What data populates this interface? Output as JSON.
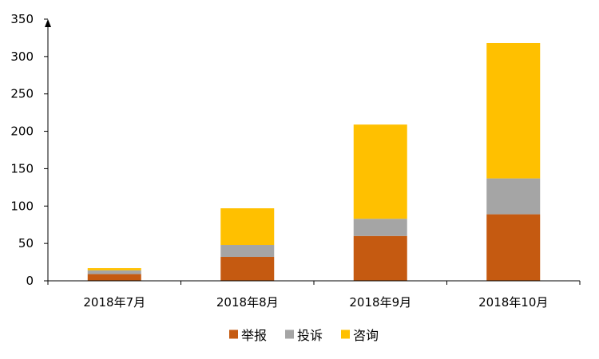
{
  "chart_data": {
    "type": "bar",
    "stacked": true,
    "categories": [
      "2018年7月",
      "2018年8月",
      "2018年9月",
      "2018年10月"
    ],
    "series": [
      {
        "name": "举报",
        "color": "#c55a11",
        "values": [
          9,
          32,
          60,
          89
        ]
      },
      {
        "name": "投诉",
        "color": "#a5a5a5",
        "values": [
          5,
          16,
          23,
          48
        ]
      },
      {
        "name": "咨询",
        "color": "#ffc000",
        "values": [
          3,
          49,
          126,
          181
        ]
      }
    ],
    "ylim": [
      0,
      350
    ],
    "yticks": [
      0,
      50,
      100,
      150,
      200,
      250,
      300,
      350
    ],
    "grid": false,
    "legend_position": "bottom"
  }
}
